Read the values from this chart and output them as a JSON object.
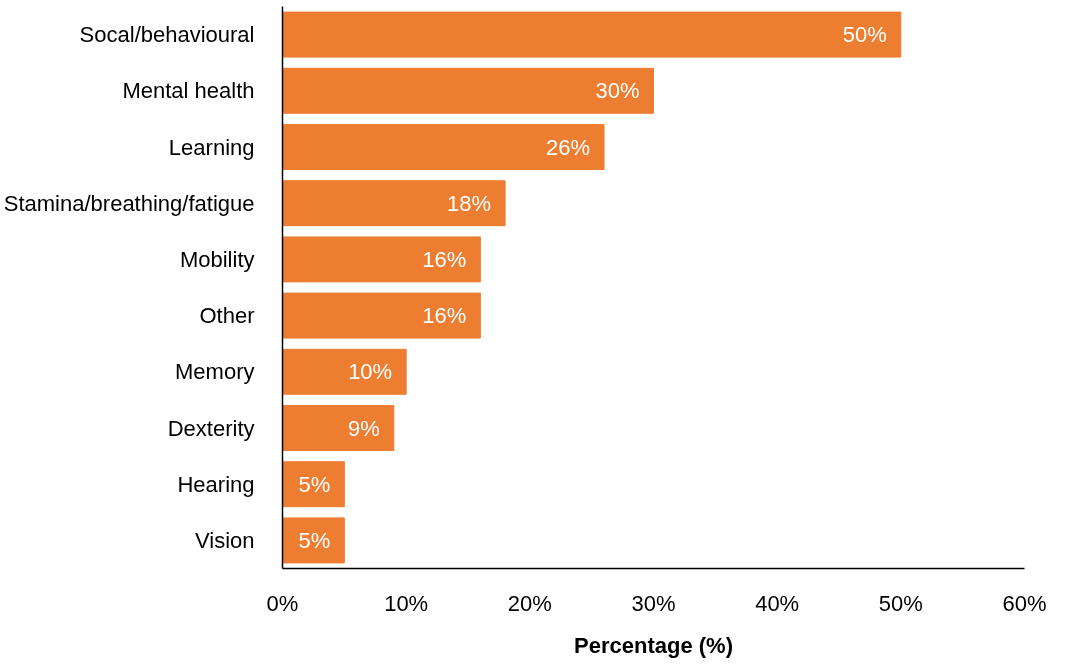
{
  "chart_data": {
    "type": "bar",
    "orientation": "horizontal",
    "xlabel": "Percentage (%)",
    "categories": [
      "Socal/behavioural",
      "Mental health",
      "Learning",
      "Stamina/breathing/fatigue",
      "Mobility",
      "Other",
      "Memory",
      "Dexterity",
      "Hearing",
      "Vision"
    ],
    "values": [
      50,
      30,
      26,
      18,
      16,
      16,
      10,
      9,
      5,
      5
    ],
    "value_labels": [
      "50%",
      "30%",
      "26%",
      "18%",
      "16%",
      "16%",
      "10%",
      "9%",
      "5%",
      "5%"
    ],
    "color": "#ed7d31",
    "xlim": [
      0,
      60
    ],
    "xticks": [
      {
        "value": 0,
        "label": "0%"
      },
      {
        "value": 10,
        "label": "10%"
      },
      {
        "value": 20,
        "label": "20%"
      },
      {
        "value": 30,
        "label": "30%"
      },
      {
        "value": 40,
        "label": "40%"
      },
      {
        "value": 50,
        "label": "50%"
      },
      {
        "value": 60,
        "label": "60%"
      }
    ],
    "grid": false
  }
}
